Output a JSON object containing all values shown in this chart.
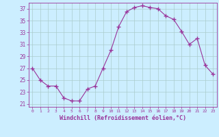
{
  "x": [
    0,
    1,
    2,
    3,
    4,
    5,
    6,
    7,
    8,
    9,
    10,
    11,
    12,
    13,
    14,
    15,
    16,
    17,
    18,
    19,
    20,
    21,
    22,
    23
  ],
  "y": [
    27,
    25,
    24,
    24,
    22,
    21.5,
    21.5,
    23.5,
    24,
    27,
    30,
    34,
    36.5,
    37.2,
    37.5,
    37.2,
    37.0,
    35.8,
    35.2,
    33.2,
    31.0,
    32.0,
    27.5,
    26.0
  ],
  "line_color": "#993399",
  "marker_color": "#993399",
  "bg_color": "#cceeff",
  "grid_color": "#aacccc",
  "xlabel": "Windchill (Refroidissement éolien,°C)",
  "xlabel_color": "#993399",
  "tick_color": "#993399",
  "ylim": [
    20.5,
    38.0
  ],
  "yticks": [
    21,
    23,
    25,
    27,
    29,
    31,
    33,
    35,
    37
  ],
  "xticks": [
    0,
    1,
    2,
    3,
    4,
    5,
    6,
    7,
    8,
    9,
    10,
    11,
    12,
    13,
    14,
    15,
    16,
    17,
    18,
    19,
    20,
    21,
    22,
    23
  ],
  "figsize": [
    3.2,
    2.0
  ],
  "dpi": 100
}
